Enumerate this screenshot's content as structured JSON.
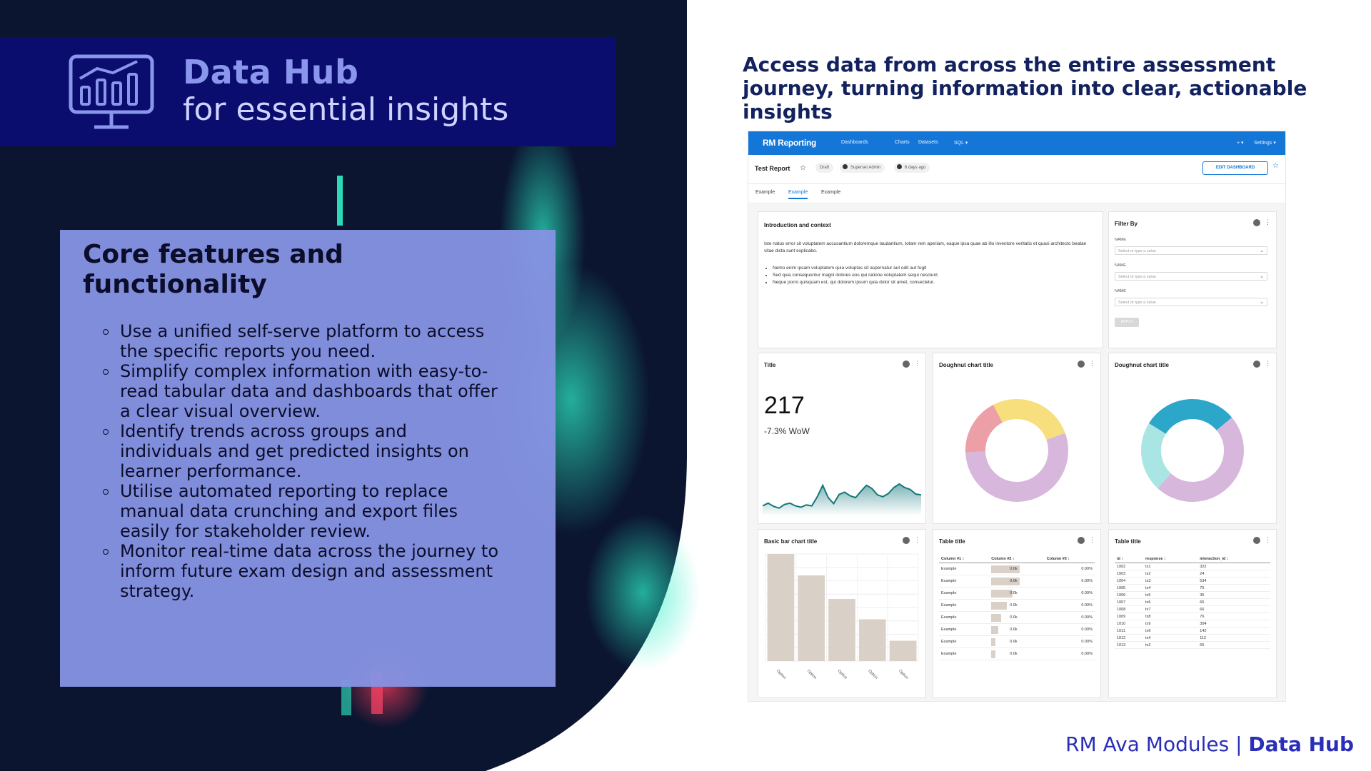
{
  "hero": {
    "title": "Data Hub",
    "subtitle": "for essential insights",
    "icon": "monitor-chart-icon"
  },
  "features": {
    "heading": "Core features and functionality",
    "items": [
      "Use a unified self-serve platform to access the specific reports you need.",
      "Simplify complex information with easy-to-read tabular data and dashboards that offer a clear visual overview.",
      "Identify trends across groups and individuals and get predicted insights on learner performance.",
      "Utilise automated reporting to replace manual data crunching and export files easily for stakeholder review.",
      "Monitor real-time data across the journey to inform future exam design and assessment strategy."
    ]
  },
  "tagline": "Access data from across the entire assessment journey, turning information into clear, actionable insights",
  "footer": {
    "prefix": "RM Ava Modules | ",
    "product": "Data Hub"
  },
  "colors": {
    "title_band": "#0a0d6e",
    "card": "#8593e2",
    "accent_blue": "#1477d8",
    "footer_blue": "#2a2fb8"
  },
  "dashboard": {
    "brand": "RM Reporting",
    "nav": [
      "Dashboards",
      "Charts",
      "Datasets",
      "SQL ▾"
    ],
    "nav_right": [
      "+ ▾",
      "Settings ▾"
    ],
    "report_title": "Test Report",
    "status_pill": "Draft",
    "owner": "Superset Admin",
    "modified": "6 days ago",
    "edit_button": "EDIT DASHBOARD",
    "tabs": [
      "Example",
      "Example",
      "Example"
    ],
    "active_tab": 1,
    "intro": {
      "title": "Introduction and context",
      "paragraph": "Iste natus error sit voluptatem accusantium doloremque laudantium, totam rem aperiam, eaque ipsa quae ab illo inventore veritatis et quasi architecto beatae vitae dicta sunt explicabo.",
      "bullets": [
        "Nemo enim ipsam voluptatem quia voluptas sit aspernatur aut odit aut fugit",
        "Sed quia consequuntur magni dolores eos qui ratione voluptatem sequi nesciunt.",
        "Neque porro quisquam est, qui dolorem ipsum quia dolor sit amet, consectetur."
      ]
    },
    "filter": {
      "title": "Filter By",
      "fields": [
        {
          "label": "NAME",
          "placeholder": "Select or type a value"
        },
        {
          "label": "NAME",
          "placeholder": "Select or type a value"
        },
        {
          "label": "NAME",
          "placeholder": "Select or type a value"
        }
      ],
      "apply": "APPLY"
    },
    "bignumber": {
      "title": "Title",
      "value": "217",
      "change": "-7.3% WoW"
    },
    "donut1_title": "Doughnut chart title",
    "donut2_title": "Doughnut chart title",
    "bar_title": "Basic bar chart title",
    "table1": {
      "title": "Table title",
      "headers": [
        "Column #1",
        "Column #2",
        "Column #3"
      ],
      "rows": [
        [
          "Example",
          "0.0k",
          "0.00%"
        ],
        [
          "Example",
          "0.0k",
          "0.00%"
        ],
        [
          "Example",
          "0.0k",
          "0.00%"
        ],
        [
          "Example",
          "0.0k",
          "0.00%"
        ],
        [
          "Example",
          "0.0k",
          "0.00%"
        ],
        [
          "Example",
          "0.0k",
          "0.00%"
        ],
        [
          "Example",
          "0.0k",
          "0.00%"
        ],
        [
          "Example",
          "0.0k",
          "0.00%"
        ]
      ]
    },
    "table2": {
      "title": "Table title",
      "headers": [
        "id",
        "response",
        "interaction_id"
      ],
      "rows": [
        [
          "1002",
          "tx1",
          "322"
        ],
        [
          "1003",
          "tx2",
          "24"
        ],
        [
          "1004",
          "tx3",
          "534"
        ],
        [
          "1005",
          "tx4",
          "75"
        ],
        [
          "1006",
          "tx5",
          "35"
        ],
        [
          "1007",
          "tx6",
          "66"
        ],
        [
          "1008",
          "tx7",
          "66"
        ],
        [
          "1009",
          "tx8",
          "76"
        ],
        [
          "1010",
          "tx9",
          "354"
        ],
        [
          "1011",
          "tx6",
          "142"
        ],
        [
          "1012",
          "tx4",
          "112"
        ],
        [
          "1013",
          "tx2",
          "65"
        ]
      ]
    }
  },
  "chart_data": [
    {
      "type": "area",
      "title": "Title",
      "series": [
        {
          "values": [
            0.1,
            0.16,
            0.09,
            0.05,
            0.13,
            0.16,
            0.1,
            0.07,
            0.12,
            0.1,
            0.3,
            0.55,
            0.28,
            0.15,
            0.35,
            0.4,
            0.32,
            0.28,
            0.42,
            0.55,
            0.48,
            0.34,
            0.3,
            0.37,
            0.5,
            0.58,
            0.5,
            0.46,
            0.36,
            0.34
          ]
        }
      ],
      "color": "#13777a"
    },
    {
      "type": "pie",
      "title": "Doughnut chart title",
      "slices": [
        {
          "value": 55,
          "color": "#d8b7dc"
        },
        {
          "value": 18,
          "color": "#ec9fa7"
        },
        {
          "value": 27,
          "color": "#f6df7c"
        }
      ]
    },
    {
      "type": "pie",
      "title": "Doughnut chart title",
      "slices": [
        {
          "value": 48,
          "color": "#d8b7dc"
        },
        {
          "value": 22,
          "color": "#a8e5e3"
        },
        {
          "value": 30,
          "color": "#2ca6c9"
        }
      ]
    },
    {
      "type": "bar",
      "title": "Basic bar chart title",
      "categories": [
        "Option",
        "Option",
        "Option",
        "Option",
        "Option"
      ],
      "values": [
        100,
        80,
        58,
        39,
        19
      ],
      "ylim": [
        0,
        100
      ],
      "color": "#d9d1c8"
    }
  ]
}
